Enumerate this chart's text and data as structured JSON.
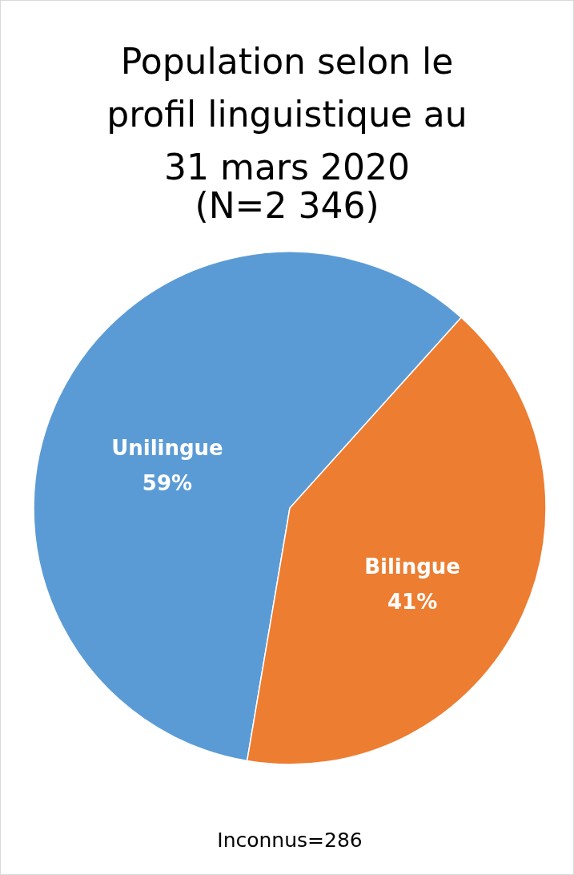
{
  "chart_data": {
    "type": "pie",
    "title": "Population selon le profil linguistique au 31 mars 2020",
    "subtitle": "(N=2 346)",
    "categories": [
      "Unilingue",
      "Bilingue"
    ],
    "values": [
      59,
      41
    ],
    "colors": [
      "#5b9bd5",
      "#ed7d31"
    ],
    "value_labels": [
      "59%",
      "41%"
    ],
    "annotations": [
      "Inconnus=286"
    ]
  }
}
